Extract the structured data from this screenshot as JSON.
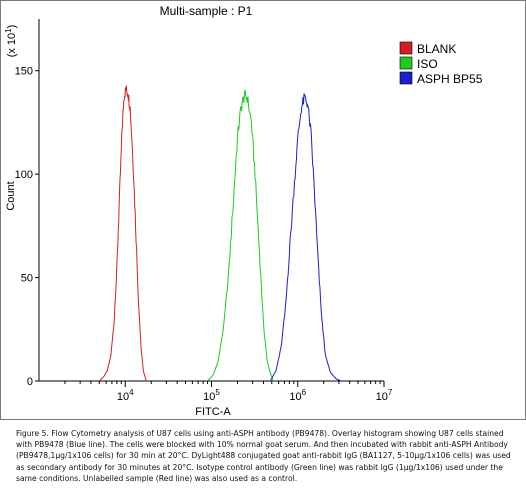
{
  "chart_data": {
    "type": "histogram",
    "title": "Multi-sample : P1",
    "xlabel": "FITC-A",
    "ylabel": "Count",
    "y_scale_label": "(x 10^1)",
    "x_scale": "log",
    "xlim": [
      1000,
      10000000
    ],
    "ylim": [
      0,
      175
    ],
    "x_tick_values": [
      10000,
      100000,
      1000000,
      10000000
    ],
    "x_tick_labels": [
      {
        "base": "10",
        "exp": "4"
      },
      {
        "base": "10",
        "exp": "5"
      },
      {
        "base": "10",
        "exp": "6"
      },
      {
        "base": "10",
        "exp": "7"
      }
    ],
    "y_ticks": [
      0,
      50,
      100,
      150
    ],
    "legend_position": "top-right",
    "series": [
      {
        "name": "BLANK",
        "color": "#d42020",
        "points": [
          [
            5000,
            0
          ],
          [
            5600,
            2
          ],
          [
            6200,
            5
          ],
          [
            6800,
            12
          ],
          [
            7400,
            28
          ],
          [
            8000,
            55
          ],
          [
            8600,
            90
          ],
          [
            9200,
            122
          ],
          [
            9700,
            138
          ],
          [
            10200,
            141
          ],
          [
            10800,
            139
          ],
          [
            11400,
            132
          ],
          [
            12200,
            110
          ],
          [
            13200,
            75
          ],
          [
            14200,
            40
          ],
          [
            15200,
            17
          ],
          [
            16200,
            5
          ],
          [
            17500,
            0
          ]
        ]
      },
      {
        "name": "ISO",
        "color": "#1ecb1e",
        "points": [
          [
            90000,
            0
          ],
          [
            105000,
            3
          ],
          [
            120000,
            10
          ],
          [
            140000,
            28
          ],
          [
            160000,
            55
          ],
          [
            180000,
            88
          ],
          [
            200000,
            118
          ],
          [
            220000,
            132
          ],
          [
            240000,
            138
          ],
          [
            260000,
            137
          ],
          [
            290000,
            125
          ],
          [
            320000,
            100
          ],
          [
            360000,
            62
          ],
          [
            400000,
            28
          ],
          [
            440000,
            10
          ],
          [
            480000,
            4
          ],
          [
            520000,
            0
          ]
        ]
      },
      {
        "name": "ASPH BP55",
        "color": "#1a20cc",
        "points": [
          [
            480000,
            0
          ],
          [
            560000,
            5
          ],
          [
            640000,
            16
          ],
          [
            720000,
            35
          ],
          [
            800000,
            62
          ],
          [
            900000,
            92
          ],
          [
            1000000,
            117
          ],
          [
            1100000,
            132
          ],
          [
            1200000,
            137
          ],
          [
            1300000,
            134
          ],
          [
            1420000,
            120
          ],
          [
            1560000,
            92
          ],
          [
            1720000,
            58
          ],
          [
            1900000,
            30
          ],
          [
            2100000,
            12
          ],
          [
            2400000,
            4
          ],
          [
            2800000,
            1
          ],
          [
            3200000,
            0
          ]
        ]
      }
    ]
  },
  "caption": {
    "text": "Figure 5. Flow Cytometry analysis of U87 cells using anti-ASPH antibody (PB9478). Overlay histogram showing U87 cells stained with PB9478 (Blue line). The cells were blocked with 10% normal goat serum. And then incubated with rabbit anti-ASPH Antibody (PB9478,1μg/1x106 cells) for 30 min at 20°C. DyLight488 conjugated goat anti-rabbit IgG (BA1127, 5-10μg/1x106 cells) was used as secondary antibody for 30 minutes at 20°C. Isotype control antibody (Green line) was rabbit IgG (1μg/1x106) used under the same conditions. Unlabelled sample (Red line) was also used as a control."
  }
}
